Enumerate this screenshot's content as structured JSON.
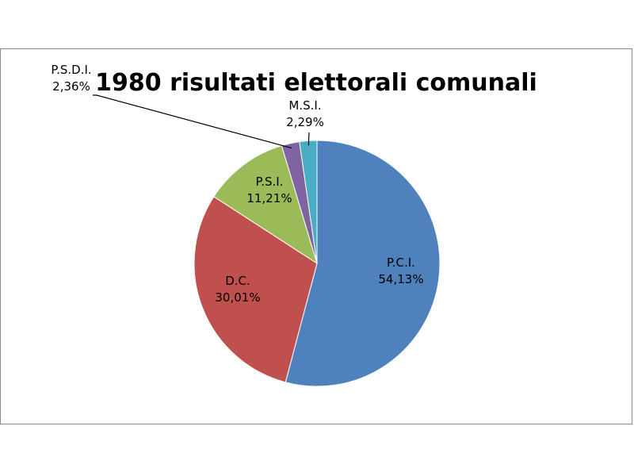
{
  "chart_data": {
    "type": "pie",
    "title": "1980 risultati elettorali comunali",
    "categories": [
      "P.C.I.",
      "D.C.",
      "P.S.I.",
      "P.S.D.I.",
      "M.S.I."
    ],
    "values": [
      54.13,
      30.01,
      11.21,
      2.36,
      2.29
    ],
    "value_labels": [
      "54,13%",
      "30,01%",
      "11,21%",
      "2,36%",
      "2,29%"
    ],
    "colors": [
      "#4f81bd",
      "#c0504d",
      "#9bbb59",
      "#8064a2",
      "#4bacc6"
    ],
    "legend": "none",
    "start_angle_deg": 0,
    "direction": "clockwise"
  }
}
